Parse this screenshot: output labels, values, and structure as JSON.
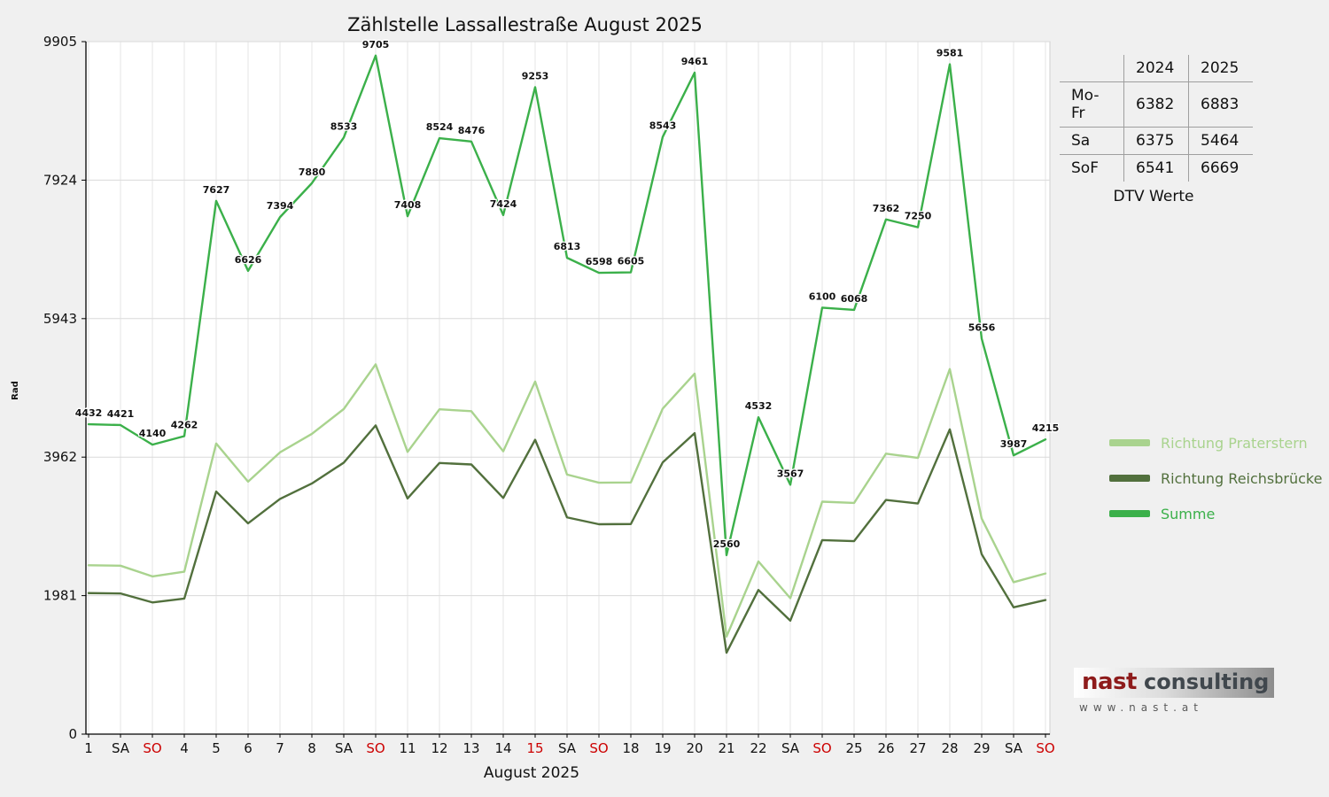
{
  "chart_data": {
    "type": "line",
    "title": "Zählstelle Lassallestraße August 2025",
    "xlabel": "August 2025",
    "ylabel": "Rad",
    "ylim": [
      0,
      9905
    ],
    "y_ticks": [
      0,
      1981,
      3962,
      5943,
      7924,
      9905
    ],
    "grid": true,
    "legend_position": "right",
    "x_tick_labels": [
      "1",
      "SA",
      "SO",
      "4",
      "5",
      "6",
      "7",
      "8",
      "SA",
      "SO",
      "11",
      "12",
      "13",
      "14",
      "15",
      "SA",
      "SO",
      "18",
      "19",
      "20",
      "21",
      "22",
      "SA",
      "SO",
      "25",
      "26",
      "27",
      "28",
      "29",
      "SA",
      "SO"
    ],
    "red_tick_labels": [
      "SO",
      "15"
    ],
    "series": [
      {
        "name": "Richtung Praterstern",
        "color": "#a9d38e",
        "values": [
          2415,
          2409,
          2256,
          2323,
          4157,
          3611,
          4030,
          4295,
          4650,
          5289,
          4037,
          4646,
          4619,
          4046,
          5043,
          3713,
          3596,
          3600,
          4656,
          5156,
          1395,
          2470,
          1944,
          3325,
          3307,
          4012,
          3951,
          5222,
          3083,
          2173,
          2297
        ]
      },
      {
        "name": "Richtung Reichsbrücke",
        "color": "#52703d",
        "values": [
          2017,
          2012,
          1884,
          1939,
          3470,
          3015,
          3364,
          3585,
          3883,
          4416,
          3371,
          3878,
          3857,
          3378,
          4210,
          3100,
          3002,
          3005,
          3887,
          4305,
          1165,
          2062,
          1623,
          2775,
          2761,
          3350,
          3299,
          4359,
          2573,
          1814,
          1918
        ]
      },
      {
        "name": "Summe",
        "color": "#3bb04a",
        "data_labels": true,
        "values": [
          4432,
          4421,
          4140,
          4262,
          7627,
          6626,
          7394,
          7880,
          8533,
          9705,
          7408,
          8524,
          8476,
          7424,
          9253,
          6813,
          6598,
          6605,
          8543,
          9461,
          2560,
          4532,
          3567,
          6100,
          6068,
          7362,
          7250,
          9581,
          5656,
          3987,
          4215
        ]
      }
    ]
  },
  "table": {
    "headers": [
      "",
      "2024",
      "2025"
    ],
    "rows": [
      [
        "Mo-Fr",
        "6382",
        "6883"
      ],
      [
        "Sa",
        "6375",
        "5464"
      ],
      [
        "SoF",
        "6541",
        "6669"
      ]
    ],
    "caption": "DTV Werte"
  },
  "logo": {
    "brand_primary": "nast",
    "brand_secondary": "consulting",
    "url": "www.nast.at"
  },
  "colors": {
    "background": "#f0f0f0",
    "plot_background": "#ffffff",
    "holiday_red": "#cc0000"
  }
}
